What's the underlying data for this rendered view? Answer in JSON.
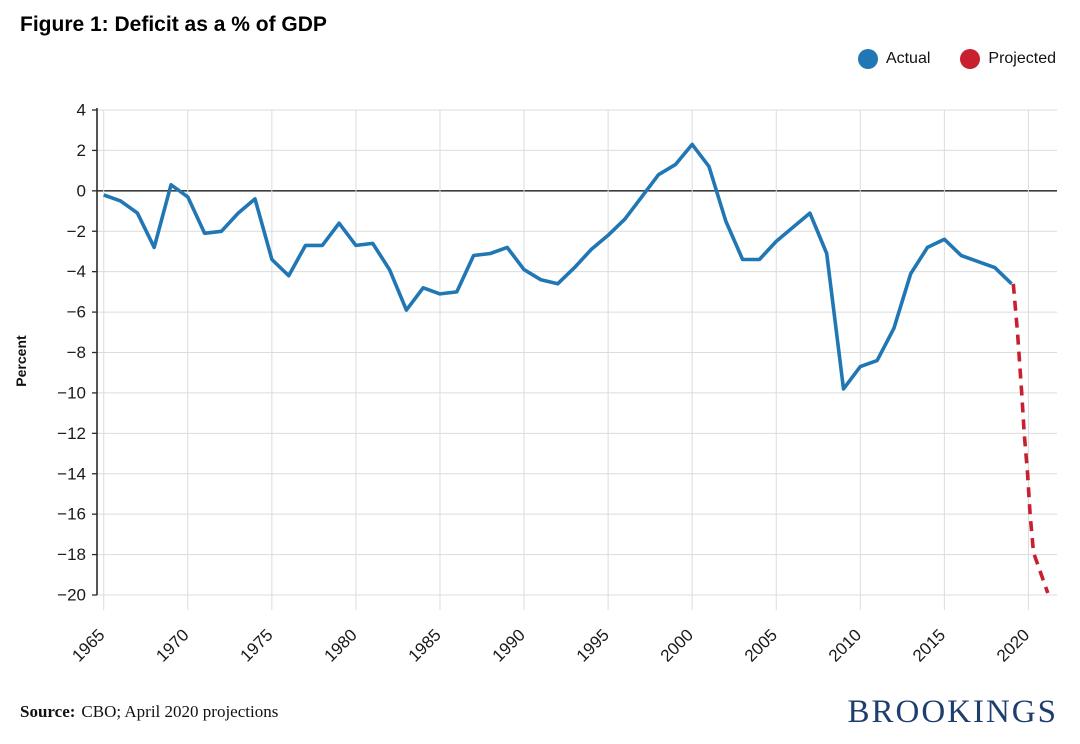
{
  "title": "Figure 1: Deficit as a % of GDP",
  "source": {
    "label": "Source:",
    "text": "CBO; April 2020 projections"
  },
  "logo": "BROOKINGS",
  "colors": {
    "actual": "#2077b4",
    "projected": "#c8202f",
    "gridline": "#dcdcdc",
    "zero_line": "#3d3d3d",
    "axis_spine": "#2b2b2b",
    "tick_text": "#1a1a1a",
    "logo_navy": "#1d3e6e"
  },
  "chart_data": {
    "type": "line",
    "title": "Figure 1: Deficit as a % of GDP",
    "xlabel": "",
    "ylabel": "Percent",
    "ylim": [
      -20,
      4
    ],
    "ytick_step": 2,
    "xlim": [
      1964.6,
      2021.7
    ],
    "xticks": [
      1965,
      1970,
      1975,
      1980,
      1985,
      1990,
      1995,
      2000,
      2005,
      2010,
      2015,
      2020
    ],
    "grid": true,
    "zero_line": true,
    "legend_position": "top-right",
    "series": [
      {
        "name": "Actual",
        "color": "#2077b4",
        "style": "solid",
        "x": [
          1965,
          1966,
          1967,
          1968,
          1969,
          1970,
          1971,
          1972,
          1973,
          1974,
          1975,
          1976,
          1977,
          1978,
          1979,
          1980,
          1981,
          1982,
          1983,
          1984,
          1985,
          1986,
          1987,
          1988,
          1989,
          1990,
          1991,
          1992,
          1993,
          1994,
          1995,
          1996,
          1997,
          1998,
          1999,
          2000,
          2001,
          2002,
          2003,
          2004,
          2005,
          2006,
          2007,
          2008,
          2009,
          2010,
          2011,
          2012,
          2013,
          2014,
          2015,
          2016,
          2017,
          2018,
          2019
        ],
        "values": [
          -0.2,
          -0.5,
          -1.1,
          -2.8,
          0.3,
          -0.3,
          -2.1,
          -2.0,
          -1.1,
          -0.4,
          -3.4,
          -4.2,
          -2.7,
          -2.7,
          -1.6,
          -2.7,
          -2.6,
          -3.9,
          -5.9,
          -4.8,
          -5.1,
          -5.0,
          -3.2,
          -3.1,
          -2.8,
          -3.9,
          -4.4,
          -4.6,
          -3.8,
          -2.9,
          -2.2,
          -1.4,
          -0.3,
          0.8,
          1.3,
          2.3,
          1.2,
          -1.5,
          -3.4,
          -3.4,
          -2.5,
          -1.8,
          -1.1,
          -3.1,
          -9.8,
          -8.7,
          -8.4,
          -6.8,
          -4.1,
          -2.8,
          -2.4,
          -3.2,
          -3.5,
          -3.8,
          -4.6
        ]
      },
      {
        "name": "Projected",
        "color": "#c8202f",
        "style": "dashed",
        "x": [
          2019.1,
          2019.35,
          2019.6,
          2019.75,
          2019.95,
          2020.1,
          2020.3,
          2021.15
        ],
        "values": [
          -4.6,
          -7.0,
          -10.0,
          -12.0,
          -14.0,
          -16.0,
          -17.9,
          -19.9
        ]
      }
    ]
  }
}
